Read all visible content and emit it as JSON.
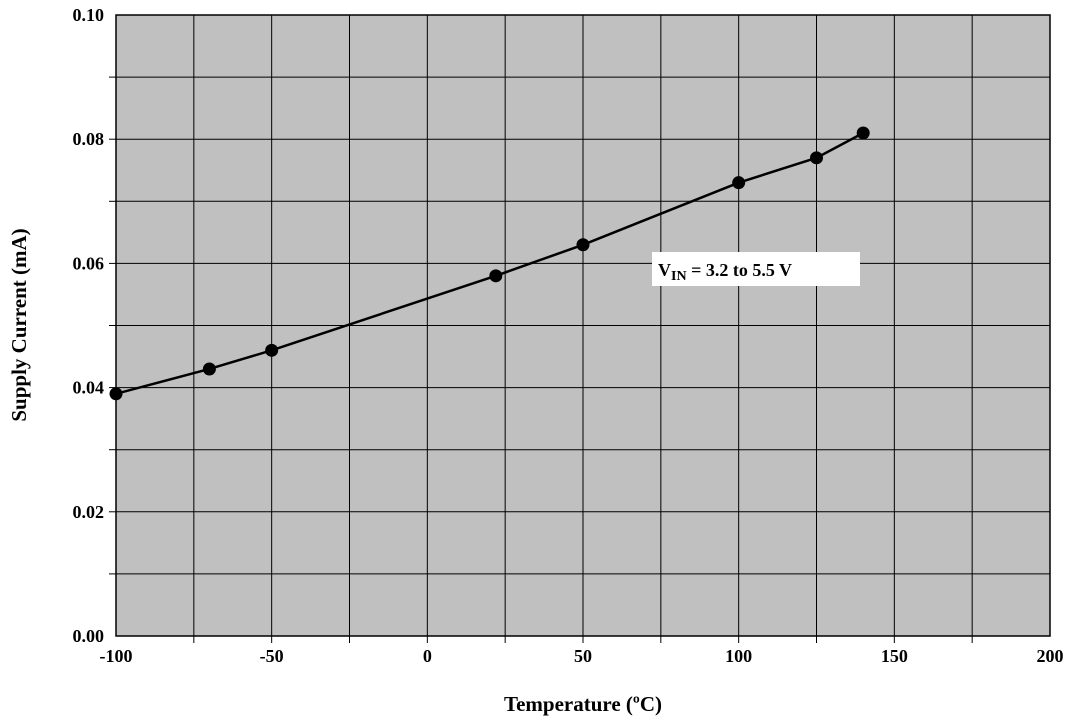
{
  "chart_data": {
    "type": "line",
    "title": "",
    "xlabel": "Temperature (ºC)",
    "ylabel": "Supply Current (mA)",
    "xlim": [
      -100,
      200
    ],
    "ylim": [
      0.0,
      0.1
    ],
    "x_ticks": [
      "-100",
      "-50",
      "0",
      "50",
      "100",
      "150",
      "200"
    ],
    "y_ticks": [
      "0.00",
      "0.02",
      "0.04",
      "0.06",
      "0.08",
      "0.10"
    ],
    "grid": true,
    "background_color": "#c0c0c0",
    "line_color": "#000000",
    "marker": "filled-circle",
    "series": [
      {
        "x": [
          -100,
          -70,
          -50,
          22,
          50,
          100,
          125,
          140
        ],
        "y": [
          0.039,
          0.043,
          0.046,
          0.058,
          0.063,
          0.073,
          0.077,
          0.081
        ]
      }
    ],
    "annotation": {
      "main": "V",
      "subscript": "IN",
      "rest": " = 3.2 to 5.5 V"
    }
  }
}
